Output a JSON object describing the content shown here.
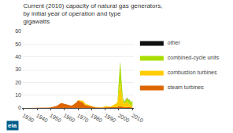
{
  "chart_data": {
    "type": "area",
    "title": "Current (2010) capacity of natural gas generators,  by initial year of operation and type",
    "subtitle": "gigawatts",
    "annotations": [
      "eia"
    ],
    "stacked": true,
    "grid": true,
    "legend": "right",
    "xlim": [
      1929,
      2011
    ],
    "xticks": [
      1930,
      1940,
      1950,
      1960,
      1970,
      1980,
      1990,
      2000,
      2010
    ],
    "ylim": [
      0,
      60
    ],
    "yticks": [
      0,
      10,
      20,
      30,
      40,
      50,
      60
    ],
    "x": [
      1930,
      1931,
      1932,
      1933,
      1934,
      1935,
      1936,
      1937,
      1938,
      1939,
      1940,
      1941,
      1942,
      1943,
      1944,
      1945,
      1946,
      1947,
      1948,
      1949,
      1950,
      1951,
      1952,
      1953,
      1954,
      1955,
      1956,
      1957,
      1958,
      1959,
      1960,
      1961,
      1962,
      1963,
      1964,
      1965,
      1966,
      1967,
      1968,
      1969,
      1970,
      1971,
      1972,
      1973,
      1974,
      1975,
      1976,
      1977,
      1978,
      1979,
      1980,
      1981,
      1982,
      1983,
      1984,
      1985,
      1986,
      1987,
      1988,
      1989,
      1990,
      1991,
      1992,
      1993,
      1994,
      1995,
      1996,
      1997,
      1998,
      1999,
      2000,
      2001,
      2002,
      2003,
      2004,
      2005,
      2006,
      2007,
      2008,
      2009,
      2010
    ],
    "series": [
      {
        "name": "steam turbines",
        "color": "#dd6600",
        "values": [
          0,
          0,
          0,
          0,
          0,
          0,
          0,
          0,
          0,
          0,
          0,
          0,
          0,
          0,
          0,
          0,
          0,
          0.1,
          0.2,
          0.3,
          0.5,
          0.7,
          0.9,
          1.1,
          1.5,
          2.0,
          3.0,
          3.5,
          3.8,
          3.5,
          3.2,
          2.8,
          2.5,
          2.3,
          2.0,
          1.8,
          2.2,
          2.8,
          3.5,
          4.5,
          6.0,
          5.5,
          4.8,
          4.5,
          4.0,
          2.5,
          2.2,
          1.8,
          1.8,
          1.3,
          1.0,
          0.8,
          0.6,
          0.4,
          0.4,
          0.3,
          0.2,
          0.2,
          0.3,
          0.4,
          0.4,
          0.5,
          0.4,
          0.3,
          0.3,
          0.4,
          0.5,
          0.6,
          0.7,
          0.9,
          1.2,
          1.5,
          1.2,
          0.8,
          0.6,
          0.8,
          1.0,
          0.8,
          0.6,
          0.4,
          0.4
        ]
      },
      {
        "name": "combustion turbines",
        "color": "#ffcc00",
        "values": [
          0,
          0,
          0,
          0,
          0,
          0,
          0,
          0,
          0,
          0,
          0,
          0,
          0,
          0,
          0,
          0,
          0,
          0,
          0,
          0,
          0,
          0,
          0,
          0,
          0,
          0,
          0,
          0,
          0,
          0,
          0,
          0,
          0,
          0,
          0,
          0,
          0,
          0,
          0,
          0.1,
          0.2,
          0.4,
          0.8,
          1.2,
          1.7,
          1.2,
          0.8,
          0.8,
          0.6,
          0.4,
          0.4,
          0.3,
          0.2,
          0.2,
          0.2,
          0.2,
          0.2,
          0.3,
          0.4,
          0.7,
          0.8,
          1.0,
          0.8,
          0.6,
          0.8,
          1.2,
          1.8,
          2.2,
          2.8,
          3.5,
          13.0,
          19.0,
          11.0,
          4.5,
          2.5,
          3.5,
          4.0,
          3.0,
          2.0,
          1.5,
          2.0
        ]
      },
      {
        "name": "combined-cycle units",
        "color": "#aadd00",
        "values": [
          0,
          0,
          0,
          0,
          0,
          0,
          0,
          0,
          0,
          0,
          0,
          0,
          0,
          0,
          0,
          0,
          0,
          0,
          0,
          0,
          0,
          0,
          0,
          0,
          0,
          0,
          0,
          0,
          0,
          0,
          0,
          0,
          0,
          0,
          0,
          0,
          0,
          0,
          0,
          0,
          0,
          0,
          0,
          0,
          0,
          0,
          0,
          0,
          0,
          0,
          0,
          0,
          0,
          0,
          0,
          0,
          0,
          0,
          0,
          0,
          0,
          0,
          0,
          0,
          0,
          0,
          0,
          0,
          0,
          0.5,
          4.0,
          16.0,
          9.0,
          2.5,
          1.5,
          2.5,
          3.0,
          2.5,
          3.5,
          2.5,
          3.5
        ]
      },
      {
        "name": "other",
        "color": "#111111",
        "values": [
          0,
          0,
          0,
          0,
          0,
          0,
          0,
          0,
          0,
          0,
          0,
          0,
          0,
          0,
          0,
          0,
          0,
          0,
          0,
          0,
          0,
          0,
          0,
          0,
          0,
          0,
          0,
          0,
          0,
          0,
          0,
          0,
          0,
          0,
          0,
          0,
          0,
          0,
          0,
          0,
          0,
          0,
          0,
          0,
          0,
          0,
          0,
          0,
          0,
          0,
          0,
          0,
          0,
          0,
          0,
          0,
          0,
          0,
          0,
          0,
          0,
          0,
          0,
          0,
          0,
          0,
          0,
          0,
          0,
          0,
          0.1,
          0.2,
          0.15,
          0.1,
          0.1,
          0.1,
          0.1,
          0.1,
          0.1,
          0.1,
          0.1
        ]
      }
    ]
  }
}
